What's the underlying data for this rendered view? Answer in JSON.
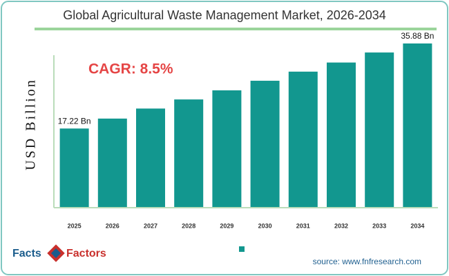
{
  "chart_data": {
    "type": "bar",
    "title": "Global Agricultural Waste Management Market, 2026-2034",
    "y_label": "USD Billion",
    "annotation": "CAGR: 8.5%",
    "categories": [
      "2025",
      "2026",
      "2027",
      "2028",
      "2029",
      "2030",
      "2031",
      "2032",
      "2033",
      "2034"
    ],
    "values": [
      17.22,
      19.4,
      21.6,
      23.6,
      25.6,
      27.7,
      29.7,
      31.7,
      33.9,
      35.88
    ],
    "value_labels": [
      "17.22 Bn",
      null,
      null,
      null,
      null,
      null,
      null,
      null,
      null,
      "35.88 Bn"
    ],
    "color": "#12978f",
    "source": "source: www.fnfresearch.com",
    "logo": {
      "left": "Facts",
      "right": "Factors"
    }
  }
}
